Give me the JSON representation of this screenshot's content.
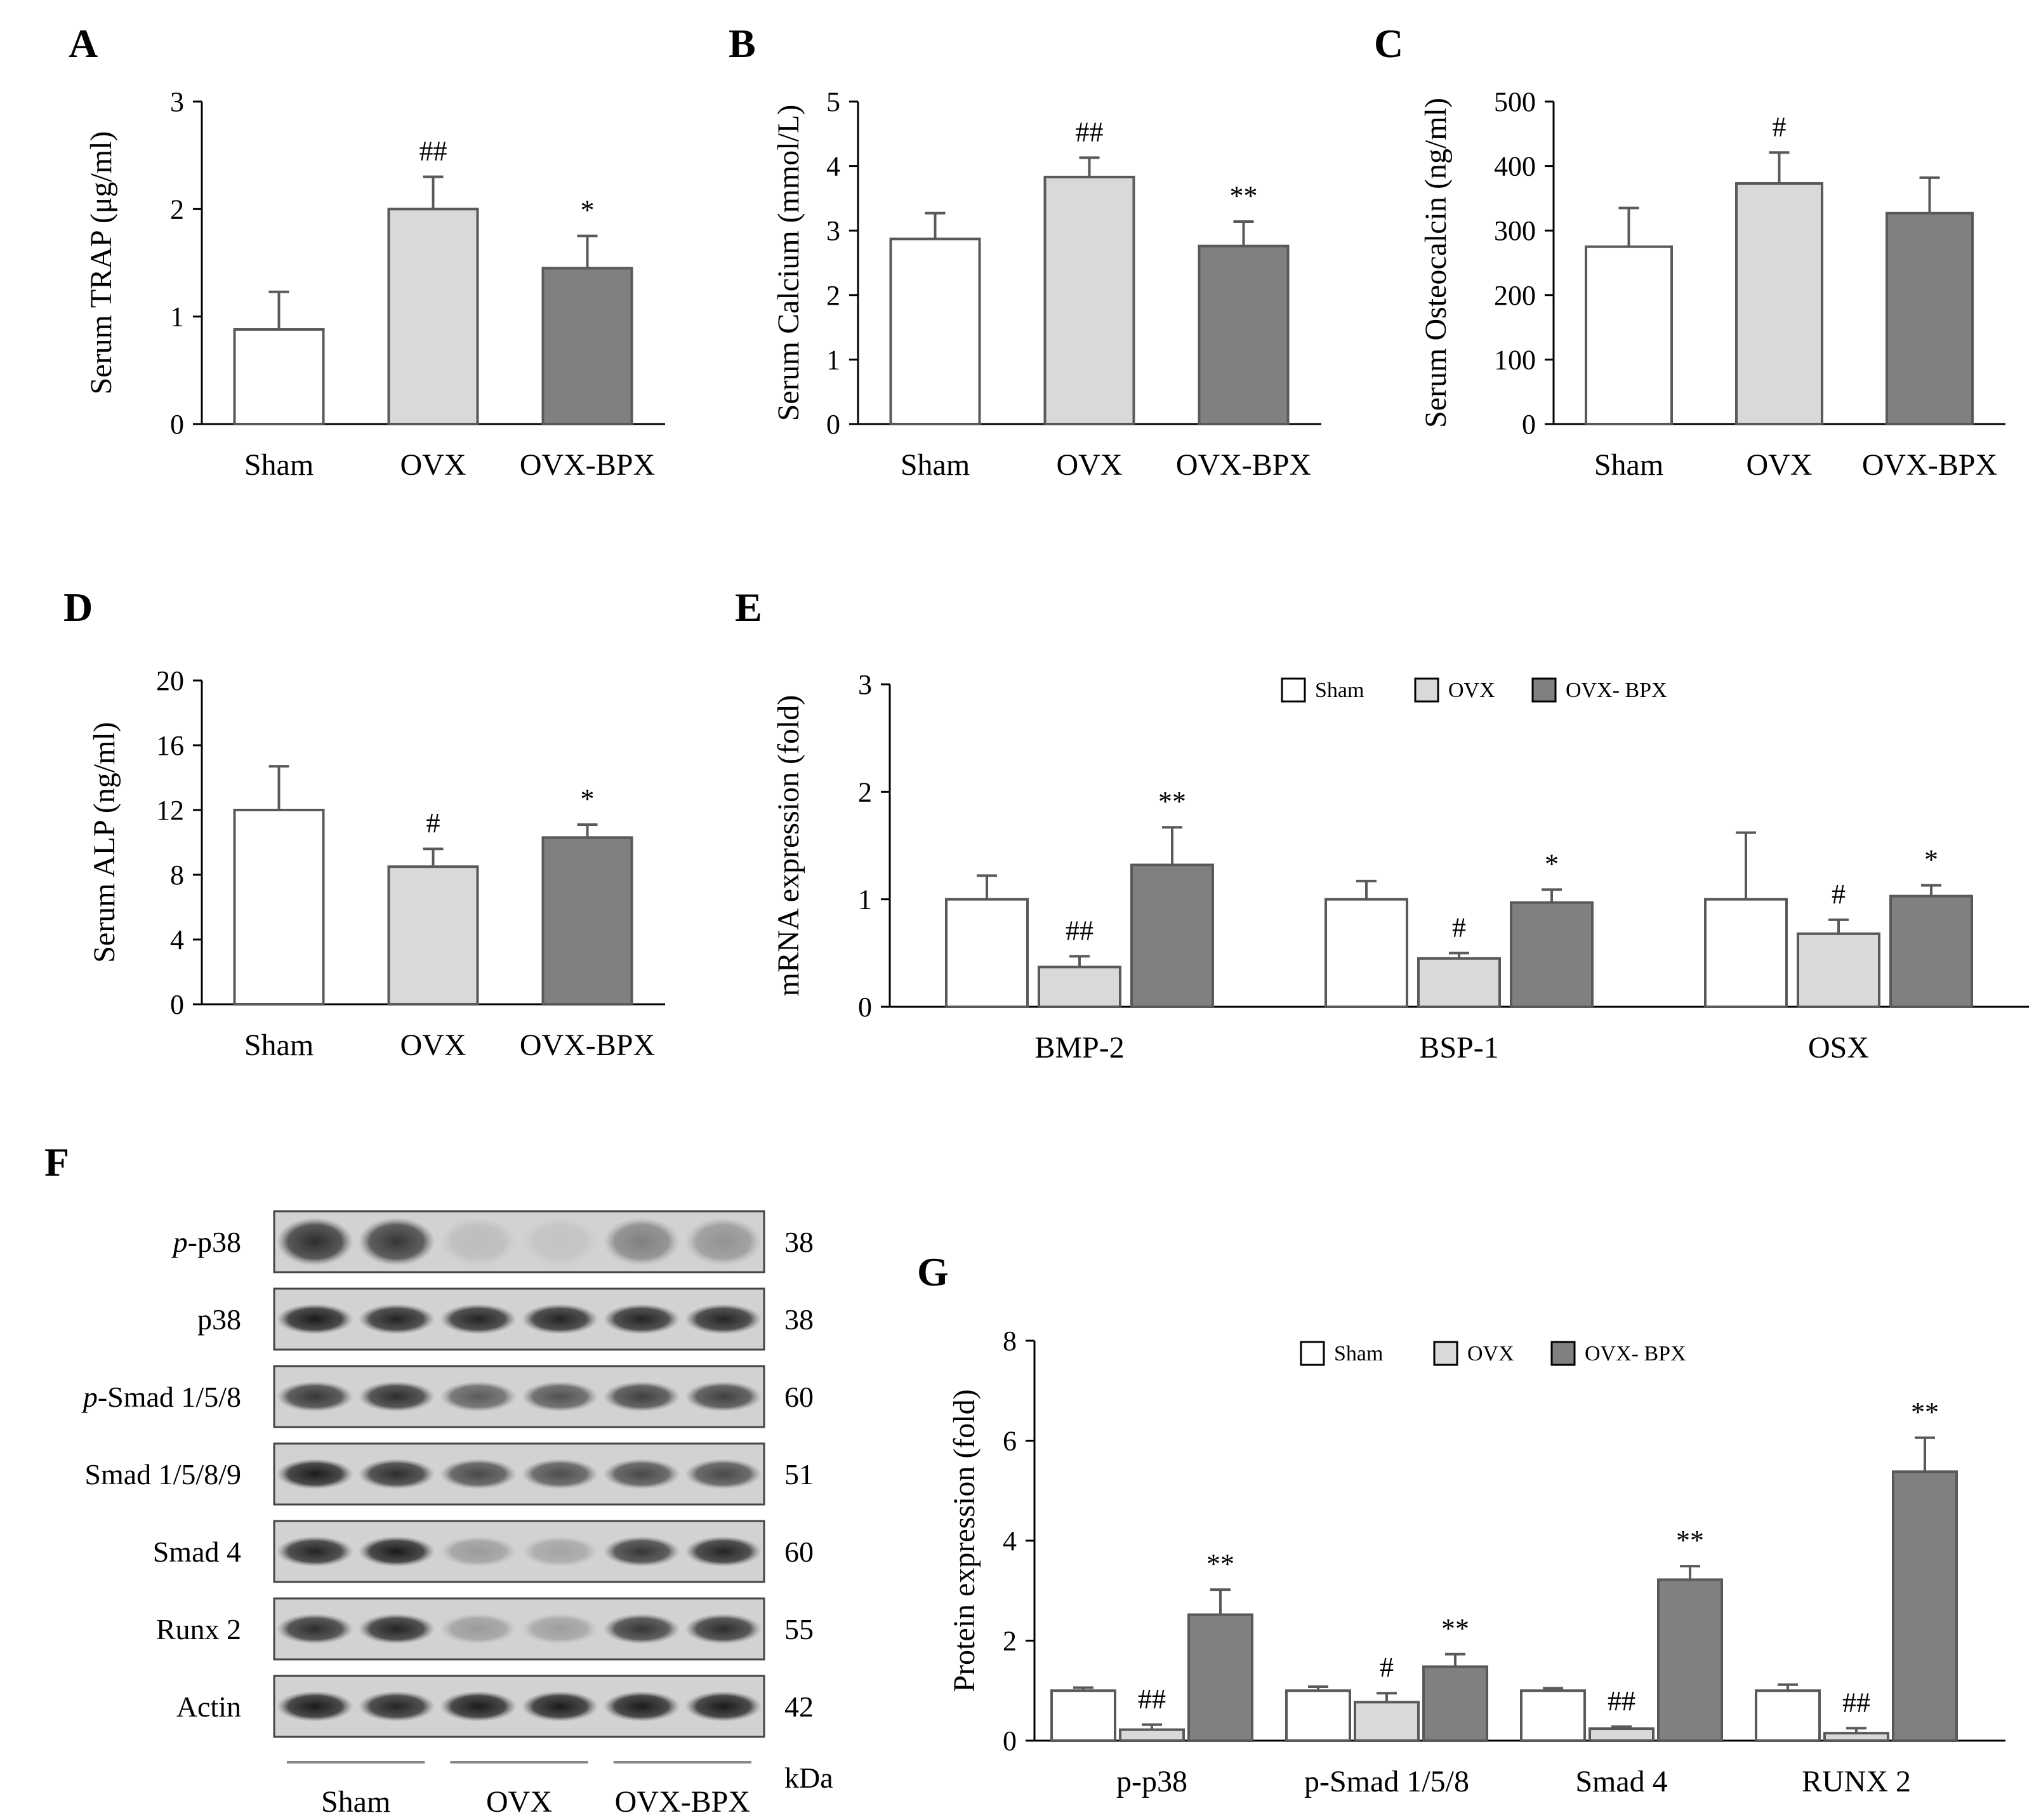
{
  "colors": {
    "sham": "#ffffff",
    "ovx": "#d9d9d9",
    "bpx": "#808080",
    "edge": "#595959",
    "band": "#1a1a1a"
  },
  "chart_data": [
    {
      "id": "A",
      "letter": "A",
      "type": "bar",
      "ylabel": "Serum  TRAP (μg/ml)",
      "ylim": [
        0,
        3
      ],
      "yticks": [
        0,
        1,
        2,
        3
      ],
      "ytick_labels": [
        "0",
        "1",
        "2",
        "3"
      ],
      "categories": [
        "Sham",
        "OVX",
        "OVX-BPX"
      ],
      "values": [
        0.88,
        2.0,
        1.45
      ],
      "errors": [
        0.35,
        0.3,
        0.3
      ],
      "significance": [
        "",
        "##",
        "*"
      ],
      "legend": null
    },
    {
      "id": "B",
      "letter": "B",
      "type": "bar",
      "ylabel": "Serum  Calcium (mmol/L)",
      "ylim": [
        0,
        5
      ],
      "yticks": [
        0,
        1,
        2,
        3,
        4,
        5
      ],
      "ytick_labels": [
        "0",
        "1",
        "2",
        "3",
        "4",
        "5"
      ],
      "categories": [
        "Sham",
        "OVX",
        "OVX-BPX"
      ],
      "values": [
        2.87,
        3.83,
        2.76
      ],
      "errors": [
        0.4,
        0.3,
        0.38
      ],
      "significance": [
        "",
        "##",
        "**"
      ],
      "legend": null
    },
    {
      "id": "C",
      "letter": "C",
      "type": "bar",
      "ylabel": "Serum  Osteocalcin  (ng/ml)",
      "ylim": [
        0,
        500
      ],
      "yticks": [
        0,
        100,
        200,
        300,
        400,
        500
      ],
      "ytick_labels": [
        "0",
        "100",
        "200",
        "300",
        "400",
        "500"
      ],
      "categories": [
        "Sham",
        "OVX",
        "OVX-BPX"
      ],
      "values": [
        275,
        373,
        327
      ],
      "errors": [
        60,
        48,
        55
      ],
      "significance": [
        "",
        "#",
        ""
      ],
      "legend": null
    },
    {
      "id": "D",
      "letter": "D",
      "type": "bar",
      "ylabel": "Serum  ALP (ng/ml)",
      "ylim": [
        0,
        20
      ],
      "yticks": [
        0,
        4,
        8,
        12,
        16,
        20
      ],
      "ytick_labels": [
        "0",
        "4",
        "8",
        "12",
        "16",
        "20"
      ],
      "categories": [
        "Sham",
        "OVX",
        "OVX-BPX"
      ],
      "values": [
        12.0,
        8.5,
        10.3
      ],
      "errors": [
        2.7,
        1.1,
        0.8
      ],
      "significance": [
        "",
        "#",
        "*"
      ],
      "legend": null
    },
    {
      "id": "E",
      "letter": "E",
      "type": "bar",
      "ylabel": "mRNA expression (fold)",
      "ylim": [
        0,
        3
      ],
      "yticks": [
        0,
        1,
        2,
        3
      ],
      "ytick_labels": [
        "0",
        "1",
        "2",
        "3"
      ],
      "categories": [
        "BMP-2",
        "BSP-1",
        "OSX"
      ],
      "series": [
        {
          "name": "Sham",
          "values": [
            1.0,
            1.0,
            1.0
          ],
          "errors": [
            0.22,
            0.17,
            0.62
          ],
          "sig": [
            "",
            "",
            ""
          ]
        },
        {
          "name": "OVX",
          "values": [
            0.37,
            0.45,
            0.68
          ],
          "errors": [
            0.1,
            0.05,
            0.13
          ],
          "sig": [
            "##",
            "#",
            "#"
          ]
        },
        {
          "name": "OVX- BPX",
          "values": [
            1.32,
            0.97,
            1.03
          ],
          "errors": [
            0.35,
            0.12,
            0.1
          ],
          "sig": [
            "**",
            "*",
            "*"
          ]
        }
      ],
      "legend": [
        "Sham",
        "OVX",
        "OVX- BPX"
      ]
    },
    {
      "id": "G",
      "letter": "G",
      "type": "bar",
      "ylabel": "Protein expression (fold)",
      "ylim": [
        0,
        8
      ],
      "yticks": [
        0,
        2,
        4,
        6,
        8
      ],
      "ytick_labels": [
        "0",
        "2",
        "4",
        "6",
        "8"
      ],
      "categories": [
        "p-p38",
        "p-Smad 1/5/8",
        "Smad 4",
        "RUNX 2"
      ],
      "series": [
        {
          "name": "Sham",
          "values": [
            1.0,
            1.0,
            1.0,
            1.0
          ],
          "errors": [
            0.06,
            0.08,
            0.05,
            0.12
          ],
          "sig": [
            "",
            "",
            "",
            ""
          ]
        },
        {
          "name": "OVX",
          "values": [
            0.22,
            0.77,
            0.24,
            0.15
          ],
          "errors": [
            0.1,
            0.18,
            0.04,
            0.1
          ],
          "sig": [
            "##",
            "#",
            "##",
            "##"
          ]
        },
        {
          "name": "OVX- BPX",
          "values": [
            2.52,
            1.48,
            3.22,
            5.38
          ],
          "errors": [
            0.5,
            0.25,
            0.27,
            0.68
          ],
          "sig": [
            "**",
            "**",
            "**",
            "**"
          ]
        }
      ],
      "legend": [
        "Sham",
        "OVX",
        "OVX- BPX"
      ]
    }
  ],
  "blot": {
    "letter": "F",
    "rows": [
      {
        "label_prefix": "p",
        "label_rest": "-p38",
        "kda": "38",
        "intensities": [
          0.9,
          0.85,
          0.12,
          0.08,
          0.45,
          0.35
        ]
      },
      {
        "label_prefix": "",
        "label_rest": "p38",
        "kda": "38",
        "intensities": [
          1.0,
          0.95,
          0.95,
          0.95,
          0.95,
          0.95
        ]
      },
      {
        "label_prefix": "p",
        "label_rest": "-Smad 1/5/8",
        "kda": "60",
        "intensities": [
          0.85,
          0.9,
          0.65,
          0.7,
          0.8,
          0.8
        ]
      },
      {
        "label_prefix": "",
        "label_rest": "Smad 1/5/8/9",
        "kda": "51",
        "intensities": [
          1.0,
          0.9,
          0.75,
          0.72,
          0.75,
          0.75
        ]
      },
      {
        "label_prefix": "",
        "label_rest": "Smad 4",
        "kda": "60",
        "intensities": [
          0.95,
          1.0,
          0.3,
          0.25,
          0.85,
          0.95
        ]
      },
      {
        "label_prefix": "",
        "label_rest": "Runx 2",
        "kda": "55",
        "intensities": [
          0.9,
          0.95,
          0.3,
          0.28,
          0.85,
          0.9
        ]
      },
      {
        "label_prefix": "",
        "label_rest": "Actin",
        "kda": "42",
        "intensities": [
          1.0,
          0.95,
          1.0,
          1.0,
          1.0,
          1.0
        ]
      }
    ],
    "groups": [
      "Sham",
      "OVX",
      "OVX-BPX"
    ],
    "kda_unit": "kDa"
  }
}
